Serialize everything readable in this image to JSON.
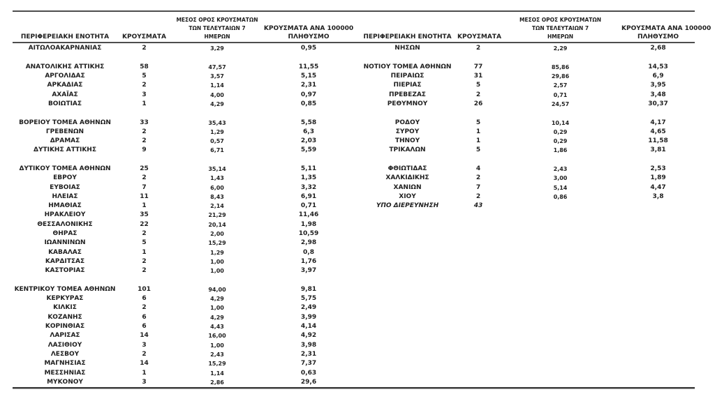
{
  "columns": {
    "region": "ΠΕΡΙΦΕΡΕΙΑΚΗ ΕΝΟΤΗΤΑ",
    "cases": "ΚΡΟΥΣΜΑΤΑ",
    "avg7_line1": "ΜΕΣΟΣ ΟΡΟΣ ΚΡΟΥΣΜΑΤΩΝ",
    "avg7_line2": "ΤΩΝ ΤΕΛΕΥΤΑΙΩΝ 7",
    "avg7_line3": "ΗΜΕΡΩΝ",
    "per100k_line1": "ΚΡΟΥΣΜΑΤΑ ΑΝΑ 100000",
    "per100k_line2": "ΠΛΗΘΥΣΜΟ"
  },
  "tables": {
    "left": {
      "rows": [
        {
          "region": "ΑΙΤΩΛΟΑΚΑΡΝΑΝΙΑΣ",
          "cases": "2",
          "avg7": "3,29",
          "per100k": "0,95"
        },
        {
          "blank": true
        },
        {
          "region": "ΑΝΑΤΟΛΙΚΗΣ ΑΤΤΙΚΗΣ",
          "cases": "58",
          "avg7": "47,57",
          "per100k": "11,55"
        },
        {
          "region": "ΑΡΓΟΛΙΔΑΣ",
          "cases": "5",
          "avg7": "3,57",
          "per100k": "5,15"
        },
        {
          "region": "ΑΡΚΑΔΙΑΣ",
          "cases": "2",
          "avg7": "1,14",
          "per100k": "2,31"
        },
        {
          "region": "ΑΧΑΪΑΣ",
          "cases": "3",
          "avg7": "4,00",
          "per100k": "0,97"
        },
        {
          "region": "ΒΟΙΩΤΙΑΣ",
          "cases": "1",
          "avg7": "4,29",
          "per100k": "0,85"
        },
        {
          "blank": true
        },
        {
          "region": "ΒΟΡΕΙΟΥ ΤΟΜΕΑ ΑΘΗΝΩΝ",
          "cases": "33",
          "avg7": "35,43",
          "per100k": "5,58"
        },
        {
          "region": "ΓΡΕΒΕΝΩΝ",
          "cases": "2",
          "avg7": "1,29",
          "per100k": "6,3"
        },
        {
          "region": "ΔΡΑΜΑΣ",
          "cases": "2",
          "avg7": "0,57",
          "per100k": "2,03"
        },
        {
          "region": "ΔΥΤΙΚΗΣ ΑΤΤΙΚΗΣ",
          "cases": "9",
          "avg7": "6,71",
          "per100k": "5,59"
        },
        {
          "blank": true
        },
        {
          "region": "ΔΥΤΙΚΟΥ ΤΟΜΕΑ ΑΘΗΝΩΝ",
          "cases": "25",
          "avg7": "35,14",
          "per100k": "5,11"
        },
        {
          "region": "ΕΒΡΟΥ",
          "cases": "2",
          "avg7": "1,43",
          "per100k": "1,35"
        },
        {
          "region": "ΕΥΒΟΙΑΣ",
          "cases": "7",
          "avg7": "6,00",
          "per100k": "3,32"
        },
        {
          "region": "ΗΛΕΙΑΣ",
          "cases": "11",
          "avg7": "8,43",
          "per100k": "6,91"
        },
        {
          "region": "ΗΜΑΘΙΑΣ",
          "cases": "1",
          "avg7": "2,14",
          "per100k": "0,71"
        },
        {
          "region": "ΗΡΑΚΛΕΙΟΥ",
          "cases": "35",
          "avg7": "21,29",
          "per100k": "11,46"
        },
        {
          "region": "ΘΕΣΣΑΛΟΝΙΚΗΣ",
          "cases": "22",
          "avg7": "20,14",
          "per100k": "1,98"
        },
        {
          "region": "ΘΗΡΑΣ",
          "cases": "2",
          "avg7": "2,00",
          "per100k": "10,59"
        },
        {
          "region": "ΙΩΑΝΝΙΝΩΝ",
          "cases": "5",
          "avg7": "15,29",
          "per100k": "2,98"
        },
        {
          "region": "ΚΑΒΑΛΑΣ",
          "cases": "1",
          "avg7": "1,29",
          "per100k": "0,8"
        },
        {
          "region": "ΚΑΡΔΙΤΣΑΣ",
          "cases": "2",
          "avg7": "1,00",
          "per100k": "1,76"
        },
        {
          "region": "ΚΑΣΤΟΡΙΑΣ",
          "cases": "2",
          "avg7": "1,00",
          "per100k": "3,97"
        },
        {
          "blank": true
        },
        {
          "region": "ΚΕΝΤΡΙΚΟΥ ΤΟΜΕΑ ΑΘΗΝΩΝ",
          "cases": "101",
          "avg7": "94,00",
          "per100k": "9,81"
        },
        {
          "region": "ΚΕΡΚΥΡΑΣ",
          "cases": "6",
          "avg7": "4,29",
          "per100k": "5,75"
        },
        {
          "region": "ΚΙΛΚΙΣ",
          "cases": "2",
          "avg7": "1,00",
          "per100k": "2,49"
        },
        {
          "region": "ΚΟΖΑΝΗΣ",
          "cases": "6",
          "avg7": "4,29",
          "per100k": "3,99"
        },
        {
          "region": "ΚΟΡΙΝΘΙΑΣ",
          "cases": "6",
          "avg7": "4,43",
          "per100k": "4,14"
        },
        {
          "region": "ΛΑΡΙΣΑΣ",
          "cases": "14",
          "avg7": "16,00",
          "per100k": "4,92"
        },
        {
          "region": "ΛΑΣΙΘΙΟΥ",
          "cases": "3",
          "avg7": "1,00",
          "per100k": "3,98"
        },
        {
          "region": "ΛΕΣΒΟΥ",
          "cases": "2",
          "avg7": "2,43",
          "per100k": "2,31"
        },
        {
          "region": "ΜΑΓΝΗΣΙΑΣ",
          "cases": "14",
          "avg7": "15,29",
          "per100k": "7,37"
        },
        {
          "region": "ΜΕΣΣΗΝΙΑΣ",
          "cases": "1",
          "avg7": "1,14",
          "per100k": "0,63"
        },
        {
          "region": "ΜΥΚΟΝΟΥ",
          "cases": "3",
          "avg7": "2,86",
          "per100k": "29,6"
        }
      ]
    },
    "right": {
      "rows": [
        {
          "region": "ΝΗΣΩΝ",
          "cases": "2",
          "avg7": "2,29",
          "per100k": "2,68"
        },
        {
          "blank": true
        },
        {
          "region": "ΝΟΤΙΟΥ ΤΟΜΕΑ ΑΘΗΝΩΝ",
          "cases": "77",
          "avg7": "85,86",
          "per100k": "14,53"
        },
        {
          "region": "ΠΕΙΡΑΙΩΣ",
          "cases": "31",
          "avg7": "29,86",
          "per100k": "6,9"
        },
        {
          "region": "ΠΙΕΡΙΑΣ",
          "cases": "5",
          "avg7": "2,57",
          "per100k": "3,95"
        },
        {
          "region": "ΠΡΕΒΕΖΑΣ",
          "cases": "2",
          "avg7": "0,71",
          "per100k": "3,48"
        },
        {
          "region": "ΡΕΘΥΜΝΟΥ",
          "cases": "26",
          "avg7": "24,57",
          "per100k": "30,37"
        },
        {
          "blank": true
        },
        {
          "region": "ΡΟΔΟΥ",
          "cases": "5",
          "avg7": "10,14",
          "per100k": "4,17"
        },
        {
          "region": "ΣΥΡΟΥ",
          "cases": "1",
          "avg7": "0,29",
          "per100k": "4,65"
        },
        {
          "region": "ΤΗΝΟΥ",
          "cases": "1",
          "avg7": "0,29",
          "per100k": "11,58"
        },
        {
          "region": "ΤΡΙΚΑΛΩΝ",
          "cases": "5",
          "avg7": "1,86",
          "per100k": "3,81"
        },
        {
          "blank": true
        },
        {
          "region": "ΦΘΙΩΤΙΔΑΣ",
          "cases": "4",
          "avg7": "2,43",
          "per100k": "2,53"
        },
        {
          "region": "ΧΑΛΚΙΔΙΚΗΣ",
          "cases": "2",
          "avg7": "3,00",
          "per100k": "1,89"
        },
        {
          "region": "ΧΑΝΙΩΝ",
          "cases": "7",
          "avg7": "5,14",
          "per100k": "4,47"
        },
        {
          "region": "ΧΙΟΥ",
          "cases": "2",
          "avg7": "0,86",
          "per100k": "3,8"
        },
        {
          "region": "ΥΠΟ ΔΙΕΡΕΥΝΗΣΗ",
          "cases": "43",
          "avg7": "",
          "per100k": "",
          "style": "italic"
        }
      ]
    }
  }
}
